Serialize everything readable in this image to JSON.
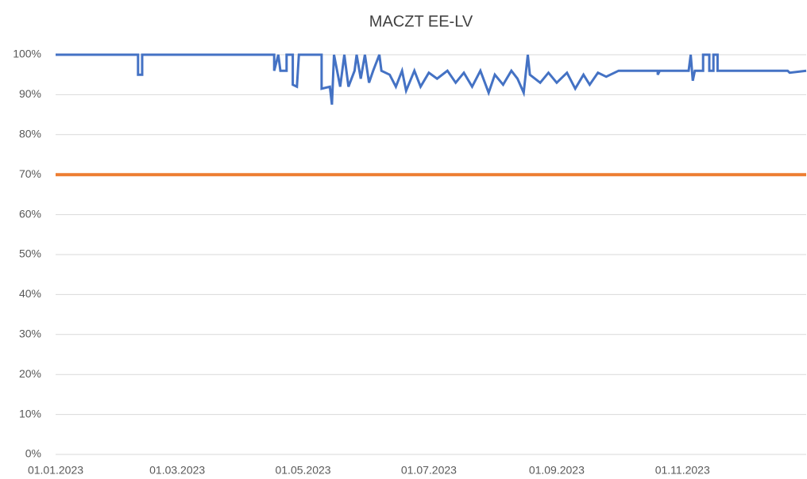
{
  "chart_data": {
    "type": "line",
    "title": "MACZT EE-LV",
    "x": [
      "01.01.2023",
      "10.02.2023",
      "10.02.2023",
      "12.02.2023",
      "12.02.2023",
      "17.04.2023",
      "17.04.2023",
      "19.04.2023",
      "20.04.2023",
      "23.04.2023",
      "23.04.2023",
      "26.04.2023",
      "26.04.2023",
      "28.04.2023",
      "29.04.2023",
      "10.05.2023",
      "10.05.2023",
      "14.05.2023",
      "15.05.2023",
      "16.05.2023",
      "19.05.2023",
      "21.05.2023",
      "23.05.2023",
      "26.05.2023",
      "27.05.2023",
      "29.05.2023",
      "31.05.2023",
      "02.06.2023",
      "04.06.2023",
      "07.06.2023",
      "08.06.2023",
      "12.06.2023",
      "15.06.2023",
      "18.06.2023",
      "20.06.2023",
      "24.06.2023",
      "27.06.2023",
      "01.07.2023",
      "05.07.2023",
      "10.07.2023",
      "14.07.2023",
      "18.07.2023",
      "22.07.2023",
      "26.07.2023",
      "30.07.2023",
      "02.08.2023",
      "06.08.2023",
      "10.08.2023",
      "13.08.2023",
      "16.08.2023",
      "18.08.2023",
      "19.08.2023",
      "24.08.2023",
      "28.08.2023",
      "01.09.2023",
      "06.09.2023",
      "10.09.2023",
      "14.09.2023",
      "17.09.2023",
      "21.09.2023",
      "25.09.2023",
      "01.10.2023",
      "20.10.2023",
      "20.10.2023",
      "21.10.2023",
      "04.11.2023",
      "05.11.2023",
      "06.11.2023",
      "07.11.2023",
      "11.11.2023",
      "11.11.2023",
      "14.11.2023",
      "14.11.2023",
      "16.11.2023",
      "16.11.2023",
      "18.11.2023",
      "18.11.2023",
      "22.12.2023",
      "23.12.2023",
      "31.12.2023"
    ],
    "series": [
      {
        "color": "#4472c4",
        "values": [
          100,
          100,
          95,
          95,
          100,
          100,
          96,
          100,
          96,
          96,
          100,
          100,
          92.5,
          92,
          100,
          100,
          91.5,
          92,
          87.5,
          100,
          92,
          100,
          92,
          96,
          100,
          94,
          100,
          93,
          96,
          100,
          96,
          95,
          92,
          96,
          91,
          96,
          92,
          95.5,
          94,
          96,
          93,
          95.5,
          92,
          96,
          90.5,
          95,
          92.5,
          96,
          94,
          90.5,
          100,
          95,
          93,
          95.5,
          93,
          95.5,
          91.5,
          95,
          92.5,
          95.5,
          94.5,
          96,
          96,
          95,
          96,
          96,
          100,
          93.5,
          96,
          96,
          100,
          100,
          96,
          96,
          100,
          100,
          96,
          96,
          95.5,
          96
        ]
      }
    ],
    "threshold": 70,
    "threshold_color": "#ed7d31",
    "xlim": [
      "01.01.2023",
      "31.12.2023"
    ],
    "xticks": [
      "01.01.2023",
      "01.03.2023",
      "01.05.2023",
      "01.07.2023",
      "01.09.2023",
      "01.11.2023"
    ],
    "ylim": [
      0,
      100
    ],
    "yticks": [
      {
        "value": 0,
        "label": "0%"
      },
      {
        "value": 10,
        "label": "10%"
      },
      {
        "value": 20,
        "label": "20%"
      },
      {
        "value": 30,
        "label": "30%"
      },
      {
        "value": 40,
        "label": "40%"
      },
      {
        "value": 50,
        "label": "50%"
      },
      {
        "value": 60,
        "label": "60%"
      },
      {
        "value": 70,
        "label": "70%"
      },
      {
        "value": 80,
        "label": "80%"
      },
      {
        "value": 90,
        "label": "90%"
      },
      {
        "value": 100,
        "label": "100%"
      }
    ],
    "grid": true
  }
}
